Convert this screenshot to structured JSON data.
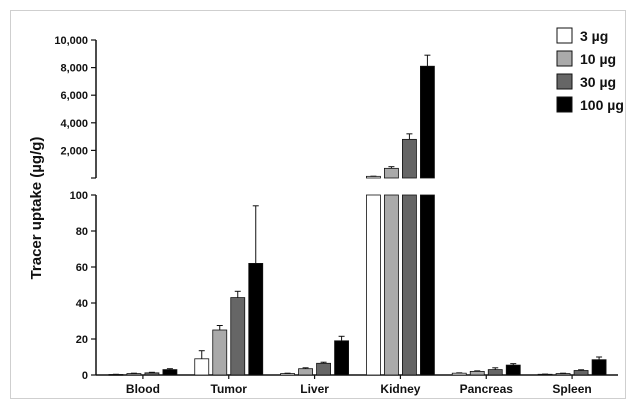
{
  "chart_data": {
    "type": "bar",
    "ylabel": "Tracer uptake (µg/g)",
    "xlabel": "",
    "title": "",
    "axis_break": true,
    "lower_ylim": [
      0,
      100
    ],
    "upper_ylim": [
      0,
      10000
    ],
    "lower_ticks": [
      "0",
      "20",
      "40",
      "60",
      "80",
      "100"
    ],
    "upper_ticks": [
      "2,000",
      "4,000",
      "6,000",
      "8,000",
      "10,000"
    ],
    "categories": [
      "Blood",
      "Tumor",
      "Liver",
      "Kidney",
      "Pancreas",
      "Spleen"
    ],
    "legend_position": "top-right",
    "series": [
      {
        "name": "3 µg",
        "color": "#ffffff",
        "values": [
          0.3,
          9,
          0.8,
          120,
          1.0,
          0.4
        ],
        "errors": [
          0.1,
          4.5,
          0.2,
          10,
          0.2,
          0.1
        ]
      },
      {
        "name": "10 µg",
        "color": "#aaaaaa",
        "values": [
          0.8,
          25,
          3.5,
          700,
          2.0,
          0.8
        ],
        "errors": [
          0.2,
          2.5,
          0.5,
          120,
          0.3,
          0.2
        ]
      },
      {
        "name": "30 µg",
        "color": "#666666",
        "values": [
          1.2,
          43,
          6.5,
          2800,
          3.0,
          2.5
        ],
        "errors": [
          0.3,
          3.5,
          0.6,
          400,
          1.0,
          0.4
        ]
      },
      {
        "name": "100 µg",
        "color": "#000000",
        "values": [
          3.0,
          62,
          19,
          8100,
          5.5,
          8.5
        ],
        "errors": [
          0.5,
          32,
          2.5,
          800,
          0.8,
          1.5
        ]
      }
    ]
  }
}
